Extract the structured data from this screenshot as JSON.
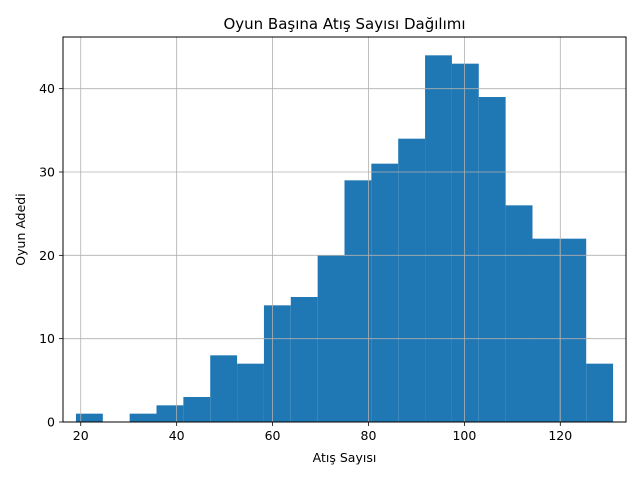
{
  "chart_data": {
    "type": "bar",
    "title": "Oyun Başına Atış Sayısı Dağılımı",
    "xlabel": "Atış Sayısı",
    "ylabel": "Oyun Adedi",
    "xlim": [
      16.3,
      133.7
    ],
    "ylim": [
      0,
      46.2
    ],
    "xticks": [
      20,
      40,
      60,
      80,
      100,
      120
    ],
    "yticks": [
      0,
      10,
      20,
      30,
      40
    ],
    "grid": true,
    "bar_color": "#1f77b4",
    "bin_edges": [
      19,
      24.6,
      30.2,
      35.8,
      41.4,
      47.0,
      52.6,
      58.2,
      63.8,
      69.4,
      75.0,
      80.6,
      86.2,
      91.8,
      97.4,
      103.0,
      108.6,
      114.2,
      119.8,
      125.4,
      131.0
    ],
    "values": [
      1,
      0,
      1,
      2,
      3,
      8,
      7,
      14,
      15,
      20,
      29,
      31,
      34,
      44,
      43,
      39,
      26,
      22,
      22,
      7
    ]
  }
}
